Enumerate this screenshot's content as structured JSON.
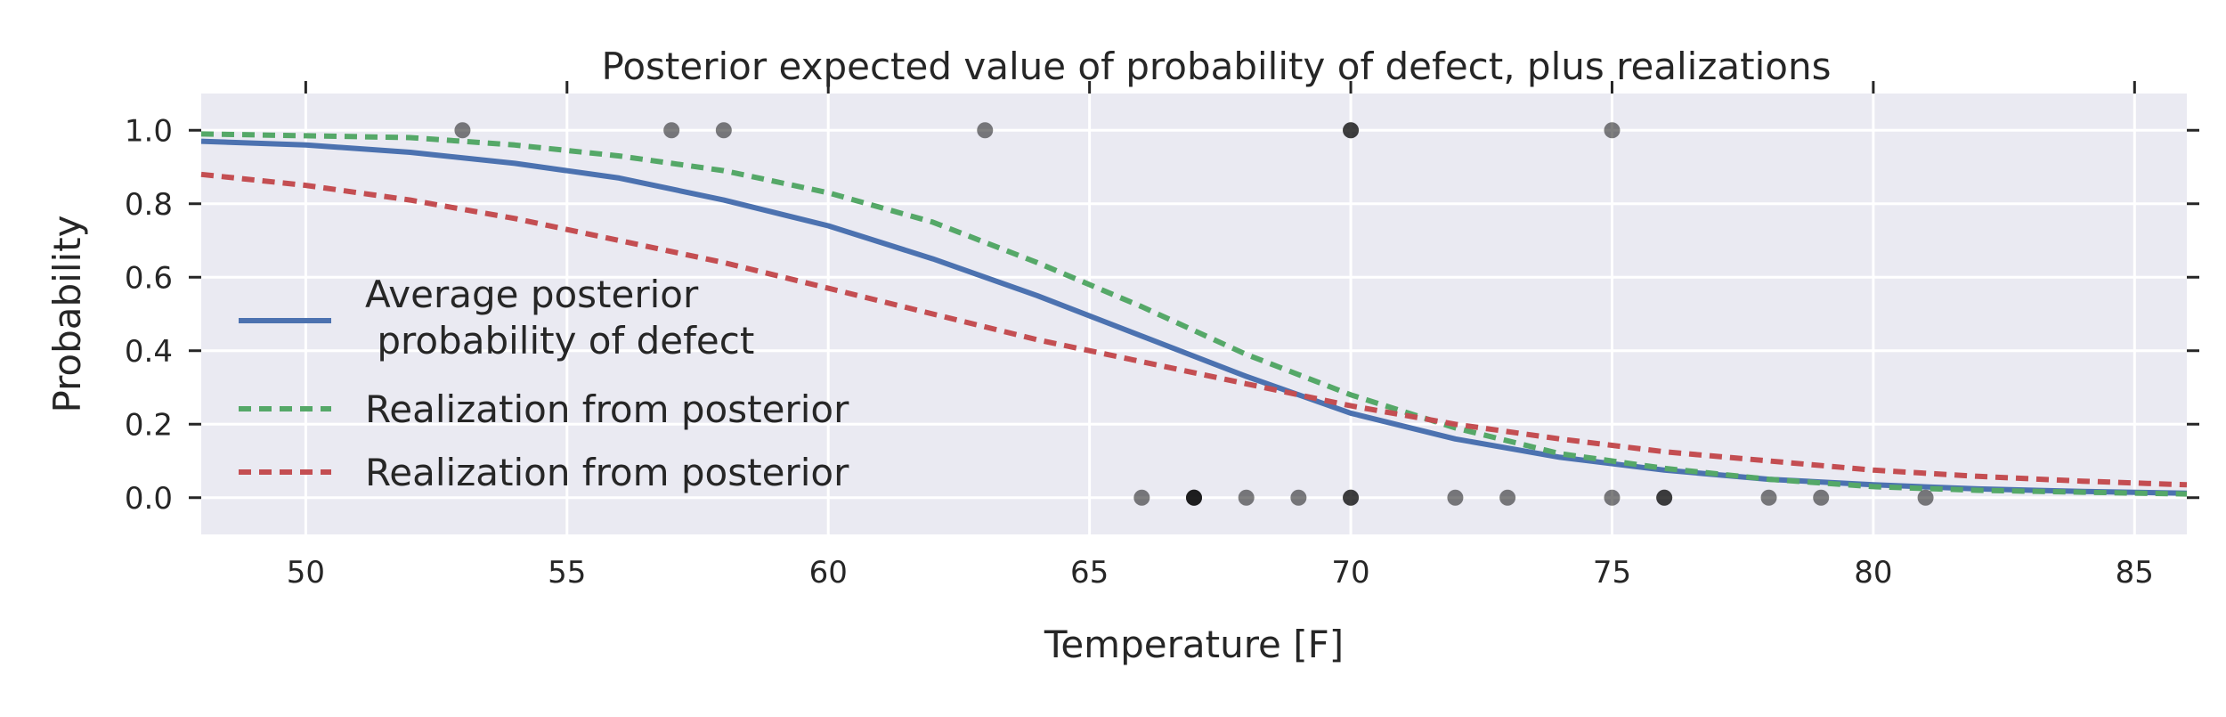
{
  "chart_data": {
    "type": "line",
    "title": "Posterior expected value of probability of defect, plus realizations",
    "xlabel": "Temperature [F]",
    "ylabel": "Probability",
    "xlim": [
      48,
      86
    ],
    "ylim": [
      -0.1,
      1.1
    ],
    "xticks": [
      "50",
      "55",
      "60",
      "65",
      "70",
      "75",
      "80",
      "85"
    ],
    "yticks": [
      "0.0",
      "0.2",
      "0.4",
      "0.6",
      "0.8",
      "1.0"
    ],
    "grid": true,
    "legend_position": "left",
    "series": [
      {
        "name": "Average posterior\n      probability of defect",
        "style": "solid",
        "color": "#4c72b0",
        "x": [
          48,
          50,
          52,
          54,
          56,
          58,
          60,
          62,
          64,
          66,
          68,
          70,
          72,
          74,
          76,
          78,
          80,
          82,
          84,
          86
        ],
        "y": [
          0.97,
          0.96,
          0.94,
          0.91,
          0.87,
          0.81,
          0.74,
          0.65,
          0.55,
          0.44,
          0.33,
          0.23,
          0.16,
          0.11,
          0.075,
          0.05,
          0.035,
          0.024,
          0.017,
          0.012
        ]
      },
      {
        "name": "Realization from posterior",
        "style": "dashed",
        "color": "#55a868",
        "x": [
          48,
          50,
          52,
          54,
          56,
          58,
          60,
          62,
          64,
          66,
          68,
          70,
          72,
          74,
          76,
          78,
          80,
          82,
          84,
          86
        ],
        "y": [
          0.99,
          0.985,
          0.98,
          0.96,
          0.93,
          0.89,
          0.83,
          0.75,
          0.64,
          0.52,
          0.39,
          0.28,
          0.19,
          0.12,
          0.08,
          0.05,
          0.03,
          0.02,
          0.015,
          0.01
        ]
      },
      {
        "name": "Realization from posterior",
        "style": "dashed",
        "color": "#c44e52",
        "x": [
          48,
          50,
          52,
          54,
          56,
          58,
          60,
          62,
          64,
          66,
          68,
          70,
          72,
          74,
          76,
          78,
          80,
          82,
          84,
          86
        ],
        "y": [
          0.88,
          0.85,
          0.81,
          0.76,
          0.7,
          0.64,
          0.57,
          0.5,
          0.43,
          0.37,
          0.31,
          0.25,
          0.2,
          0.16,
          0.125,
          0.1,
          0.075,
          0.058,
          0.045,
          0.035
        ]
      }
    ],
    "observations": {
      "color": "#000000",
      "points": [
        {
          "x": 53,
          "y": 1
        },
        {
          "x": 57,
          "y": 1
        },
        {
          "x": 58,
          "y": 1
        },
        {
          "x": 63,
          "y": 1
        },
        {
          "x": 70,
          "y": 1
        },
        {
          "x": 70,
          "y": 1
        },
        {
          "x": 75,
          "y": 1
        },
        {
          "x": 66,
          "y": 0
        },
        {
          "x": 67,
          "y": 0
        },
        {
          "x": 67,
          "y": 0
        },
        {
          "x": 67,
          "y": 0
        },
        {
          "x": 68,
          "y": 0
        },
        {
          "x": 69,
          "y": 0
        },
        {
          "x": 70,
          "y": 0
        },
        {
          "x": 70,
          "y": 0
        },
        {
          "x": 72,
          "y": 0
        },
        {
          "x": 73,
          "y": 0
        },
        {
          "x": 75,
          "y": 0
        },
        {
          "x": 76,
          "y": 0
        },
        {
          "x": 76,
          "y": 0
        },
        {
          "x": 78,
          "y": 0
        },
        {
          "x": 79,
          "y": 0
        },
        {
          "x": 81,
          "y": 0
        }
      ]
    },
    "colors": {
      "plot_background": "#eaeaf2",
      "grid": "#ffffff",
      "text": "#262626"
    }
  }
}
